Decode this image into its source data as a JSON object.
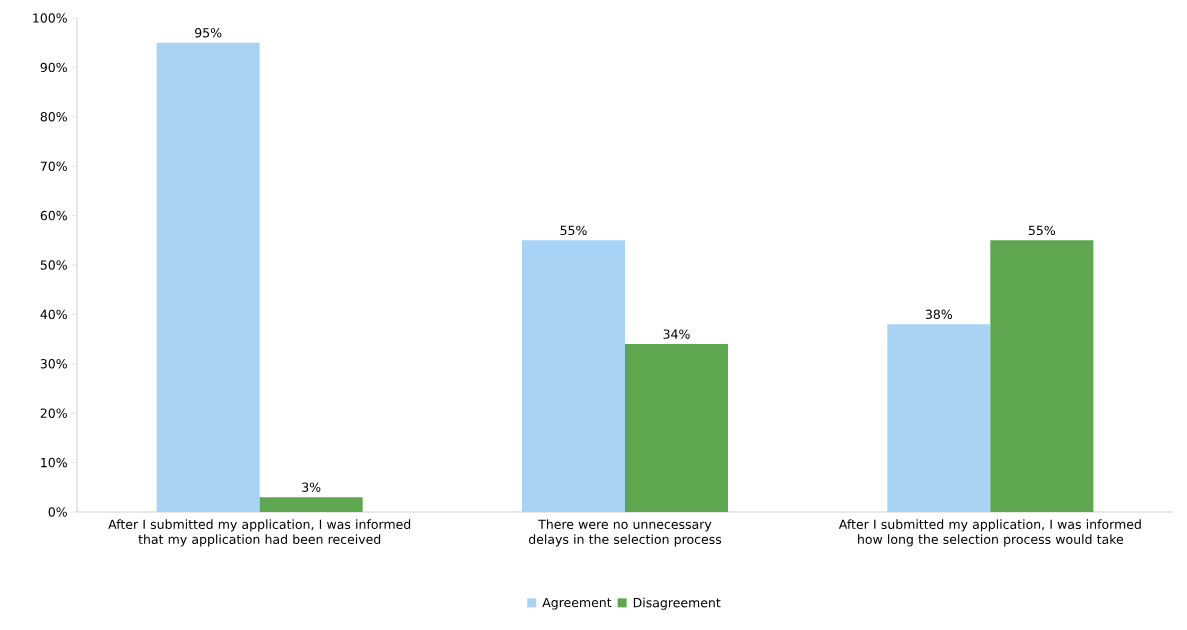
{
  "chart_data": {
    "type": "bar",
    "categories": [
      "After I submitted my application, I was informed that my application had been received",
      "There were no unnecessary delays in the selection process",
      "After I submitted my application, I was informed how long the selection process would take"
    ],
    "series": [
      {
        "name": "Agreement",
        "color": "#a9d3f5",
        "values": [
          95,
          55,
          38
        ],
        "value_labels": [
          "95%",
          "55%",
          "38%"
        ]
      },
      {
        "name": "Disagreement",
        "color": "#5ea650",
        "values": [
          3,
          34,
          55
        ],
        "value_labels": [
          "3%",
          "34%",
          "55%"
        ]
      }
    ],
    "ylim": [
      0,
      100
    ],
    "yticks": [
      {
        "value": 0,
        "label": "0%"
      },
      {
        "value": 10,
        "label": "10%"
      },
      {
        "value": 20,
        "label": "20%"
      },
      {
        "value": 30,
        "label": "30%"
      },
      {
        "value": 40,
        "label": "40%"
      },
      {
        "value": 50,
        "label": "50%"
      },
      {
        "value": 60,
        "label": "60%"
      },
      {
        "value": 70,
        "label": "70%"
      },
      {
        "value": 80,
        "label": "80%"
      },
      {
        "value": 90,
        "label": "90%"
      },
      {
        "value": 100,
        "label": "100%"
      }
    ],
    "grid": false,
    "legend": "bottom"
  }
}
